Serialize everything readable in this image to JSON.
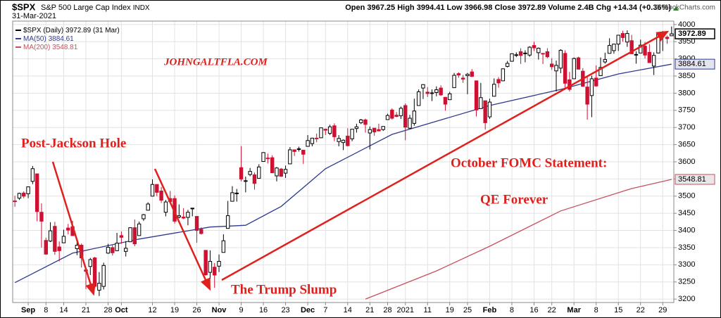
{
  "chart_data": {
    "type": "candlestick",
    "title": "$SPX",
    "subtitle": "S&P 500 Large Cap Index",
    "exchange": "INDX",
    "date": "31-Mar-2021",
    "copyright": "© StockCharts.com",
    "header_labels": {
      "open": "Open",
      "high": "High",
      "low": "Low",
      "close": "Close",
      "volume": "Volume",
      "change": "Chg"
    },
    "volume": "2.4B",
    "change": "+14.34 (+0.36%)",
    "series_name": "$SPX (Daily)",
    "series_date": "(31 Mar)",
    "up_color": "#000000",
    "down_color": "#cc1133",
    "grid": true,
    "xlim": [
      -0.5,
      148.5
    ],
    "ylim": [
      3190,
      4010
    ],
    "yticks": [
      3200,
      3250,
      3300,
      3350,
      3400,
      3450,
      3500,
      3550,
      3600,
      3650,
      3700,
      3750,
      3800,
      3850,
      3900,
      3950,
      4000
    ],
    "xticks": [
      {
        "value": 3,
        "label": "Sep"
      },
      {
        "value": 7,
        "label": "8"
      },
      {
        "value": 11,
        "label": "14"
      },
      {
        "value": 16,
        "label": "21"
      },
      {
        "value": 21,
        "label": "28"
      },
      {
        "value": 24,
        "label": "Oct"
      },
      {
        "value": 31,
        "label": "12"
      },
      {
        "value": 36,
        "label": "19"
      },
      {
        "value": 41,
        "label": "26"
      },
      {
        "value": 46,
        "label": "Nov"
      },
      {
        "value": 51,
        "label": "9"
      },
      {
        "value": 56,
        "label": "16"
      },
      {
        "value": 61,
        "label": "23"
      },
      {
        "value": 66,
        "label": "Dec"
      },
      {
        "value": 70,
        "label": "7"
      },
      {
        "value": 75,
        "label": "14"
      },
      {
        "value": 80,
        "label": "21"
      },
      {
        "value": 84,
        "label": "28"
      },
      {
        "value": 88,
        "label": "2021"
      },
      {
        "value": 93,
        "label": "11"
      },
      {
        "value": 98,
        "label": "19"
      },
      {
        "value": 102,
        "label": "25"
      },
      {
        "value": 107,
        "label": "Feb"
      },
      {
        "value": 112,
        "label": "8"
      },
      {
        "value": 117,
        "label": "16"
      },
      {
        "value": 121,
        "label": "22"
      },
      {
        "value": 126,
        "label": "Mar"
      },
      {
        "value": 131,
        "label": "8"
      },
      {
        "value": 136,
        "label": "15"
      },
      {
        "value": 141,
        "label": "22"
      },
      {
        "value": 146,
        "label": "29"
      }
    ],
    "open": [
      3486,
      3494,
      3509,
      3507,
      3543,
      3565,
      3453,
      3371,
      3369,
      3412,
      3352,
      3364,
      3407,
      3411,
      3347,
      3357,
      3285,
      3295,
      3320,
      3226,
      3237,
      3334,
      3350,
      3341,
      3385,
      3339,
      3367,
      3408,
      3385,
      3434,
      3459,
      3500,
      3534,
      3515,
      3453,
      3493,
      3493,
      3439,
      3439,
      3438,
      3464,
      3441,
      3403,
      3342,
      3278,
      3293,
      3296,
      3336,
      3406,
      3485,
      3508,
      3583,
      3544,
      3563,
      3562,
      3552,
      3601,
      3611,
      3612,
      3559,
      3579,
      3567,
      3594,
      3635,
      3638,
      3634,
      3645,
      3653,
      3669,
      3670,
      3695,
      3683,
      3705,
      3659,
      3656,
      3675,
      3667,
      3697,
      3714,
      3722,
      3684,
      3698,
      3694,
      3694,
      3723,
      3751,
      3736,
      3734,
      3764,
      3698,
      3712,
      3764,
      3815,
      3803,
      3801,
      3802,
      3815,
      3788,
      3781,
      3816,
      3857,
      3844,
      3851,
      3862,
      3836,
      3755,
      3778,
      3731,
      3791,
      3840,
      3836,
      3878,
      3893,
      3910,
      3921,
      3916,
      3911,
      3939,
      3918,
      3916,
      3921,
      3885,
      3865,
      3873,
      3916,
      3839,
      3842,
      3903,
      3864,
      3818,
      3793,
      3844,
      3851,
      3891,
      3916,
      3924,
      3943,
      3974,
      3949,
      3953,
      3913,
      3917,
      3937,
      3919,
      3879,
      3917,
      3970,
      3963,
      3967.25
    ],
    "high": [
      3501,
      3510,
      3514,
      3528,
      3588,
      3565,
      3479,
      3379,
      3424,
      3425,
      3368,
      3402,
      3419,
      3428,
      3375,
      3362,
      3285,
      3320,
      3323,
      3279,
      3306,
      3361,
      3357,
      3393,
      3397,
      3369,
      3409,
      3432,
      3426,
      3448,
      3482,
      3549,
      3534,
      3527,
      3489,
      3515,
      3502,
      3476,
      3465,
      3460,
      3466,
      3441,
      3409,
      3342,
      3342,
      3305,
      3330,
      3389,
      3486,
      3529,
      3521,
      3646,
      3557,
      3582,
      3569,
      3593,
      3628,
      3624,
      3619,
      3585,
      3582,
      3589,
      3643,
      3635,
      3644,
      3634,
      3678,
      3670,
      3682,
      3699,
      3697,
      3708,
      3712,
      3678,
      3665,
      3698,
      3695,
      3711,
      3725,
      3726,
      3703,
      3698,
      3711,
      3704,
      3740,
      3756,
      3745,
      3761,
      3770,
      3737,
      3784,
      3811,
      3826,
      3818,
      3811,
      3820,
      3823,
      3789,
      3804,
      3859,
      3861,
      3853,
      3859,
      3870,
      3836,
      3830,
      3778,
      3784,
      3843,
      3847,
      3872,
      3894,
      3915,
      3919,
      3931,
      3925,
      3937,
      3950,
      3933,
      3917,
      3931,
      3902,
      3895,
      3928,
      3925,
      3862,
      3904,
      3906,
      3873,
      3852,
      3851,
      3881,
      3904,
      3918,
      3960,
      3944,
      3970,
      3982,
      3983,
      3970,
      3922,
      3956,
      3949,
      3943,
      3919,
      3978,
      3981,
      3968,
      3994.41
    ],
    "low": [
      3469,
      3489,
      3494,
      3494,
      3535,
      3427,
      3350,
      3329,
      3366,
      3329,
      3310,
      3364,
      3389,
      3384,
      3328,
      3292,
      3229,
      3270,
      3232,
      3209,
      3228,
      3332,
      3327,
      3340,
      3361,
      3324,
      3367,
      3354,
      3385,
      3428,
      3458,
      3500,
      3500,
      3480,
      3441,
      3484,
      3420,
      3435,
      3433,
      3415,
      3441,
      3364,
      3388,
      3268,
      3259,
      3233,
      3279,
      3336,
      3405,
      3485,
      3484,
      3543,
      3511,
      3558,
      3519,
      3552,
      3600,
      3595,
      3567,
      3543,
      3556,
      3553,
      3594,
      3617,
      3630,
      3594,
      3645,
      3645,
      3657,
      3670,
      3678,
      3678,
      3660,
      3645,
      3634,
      3645,
      3660,
      3685,
      3710,
      3685,
      3636,
      3676,
      3689,
      3690,
      3723,
      3723,
      3730,
      3725,
      3663,
      3696,
      3705,
      3764,
      3783,
      3789,
      3777,
      3791,
      3792,
      3749,
      3781,
      3816,
      3845,
      3830,
      3797,
      3847,
      3732,
      3755,
      3694,
      3725,
      3791,
      3816,
      3836,
      3875,
      3892,
      3905,
      3885,
      3890,
      3906,
      3923,
      3898,
      3885,
      3902,
      3868,
      3805,
      3858,
      3815,
      3805,
      3842,
      3869,
      3819,
      3723,
      3730,
      3819,
      3851,
      3886,
      3916,
      3915,
      3923,
      3950,
      3935,
      3914,
      3886,
      3917,
      3901,
      3889,
      3853,
      3917,
      3923,
      3944,
      3966.98
    ],
    "close": [
      3484,
      3508,
      3500,
      3527,
      3580,
      3455,
      3427,
      3331,
      3399,
      3339,
      3341,
      3383,
      3401,
      3385,
      3357,
      3320,
      3281,
      3315,
      3237,
      3246,
      3298,
      3351,
      3335,
      3363,
      3380,
      3348,
      3408,
      3361,
      3419,
      3446,
      3477,
      3534,
      3511,
      3488,
      3483,
      3484,
      3427,
      3443,
      3436,
      3453,
      3465,
      3400,
      3391,
      3271,
      3310,
      3270,
      3310,
      3370,
      3443,
      3510,
      3509,
      3550,
      3545,
      3572,
      3537,
      3585,
      3627,
      3610,
      3568,
      3582,
      3558,
      3578,
      3635,
      3630,
      3638,
      3622,
      3662,
      3669,
      3667,
      3699,
      3692,
      3702,
      3673,
      3668,
      3663,
      3647,
      3695,
      3702,
      3722,
      3709,
      3694,
      3687,
      3690,
      3703,
      3735,
      3727,
      3732,
      3756,
      3701,
      3727,
      3748,
      3804,
      3825,
      3799,
      3801,
      3810,
      3795,
      3768,
      3798,
      3852,
      3853,
      3841,
      3855,
      3849,
      3751,
      3787,
      3714,
      3774,
      3826,
      3830,
      3871,
      3887,
      3915,
      3912,
      3910,
      3917,
      3934,
      3932,
      3931,
      3914,
      3906,
      3877,
      3881,
      3925,
      3829,
      3811,
      3901,
      3870,
      3820,
      3768,
      3842,
      3821,
      3875,
      3898,
      3939,
      3943,
      3969,
      3962,
      3974,
      3915,
      3913,
      3940,
      3911,
      3889,
      3910,
      3975,
      3971,
      3959,
      3972.89
    ],
    "ma_series": [
      {
        "name": "MA(50)",
        "color": "#2e3a8f",
        "tag_fill": "#e4e4ee",
        "x": [
          0,
          13,
          28,
          44,
          52,
          60,
          70,
          85,
          107,
          123,
          136,
          148
        ],
        "values": [
          3248,
          3334,
          3375,
          3410,
          3415,
          3470,
          3580,
          3680,
          3764,
          3811,
          3856,
          3884.61
        ]
      },
      {
        "name": "MA(200)",
        "color": "#c9505e",
        "tag_fill": "#e8e8e8",
        "x": [
          79,
          95,
          107,
          123,
          139,
          148
        ],
        "values": [
          3200,
          3282,
          3354,
          3457,
          3522,
          3548.81
        ]
      }
    ],
    "annotations": [
      {
        "text": "JOHNGALTFLA.COM"
      },
      {
        "text": "Post-Jackson Hole"
      },
      {
        "text": "October FOMC Statement:"
      },
      {
        "text": "QE Forever"
      },
      {
        "text": "The Trump Slump"
      }
    ]
  }
}
